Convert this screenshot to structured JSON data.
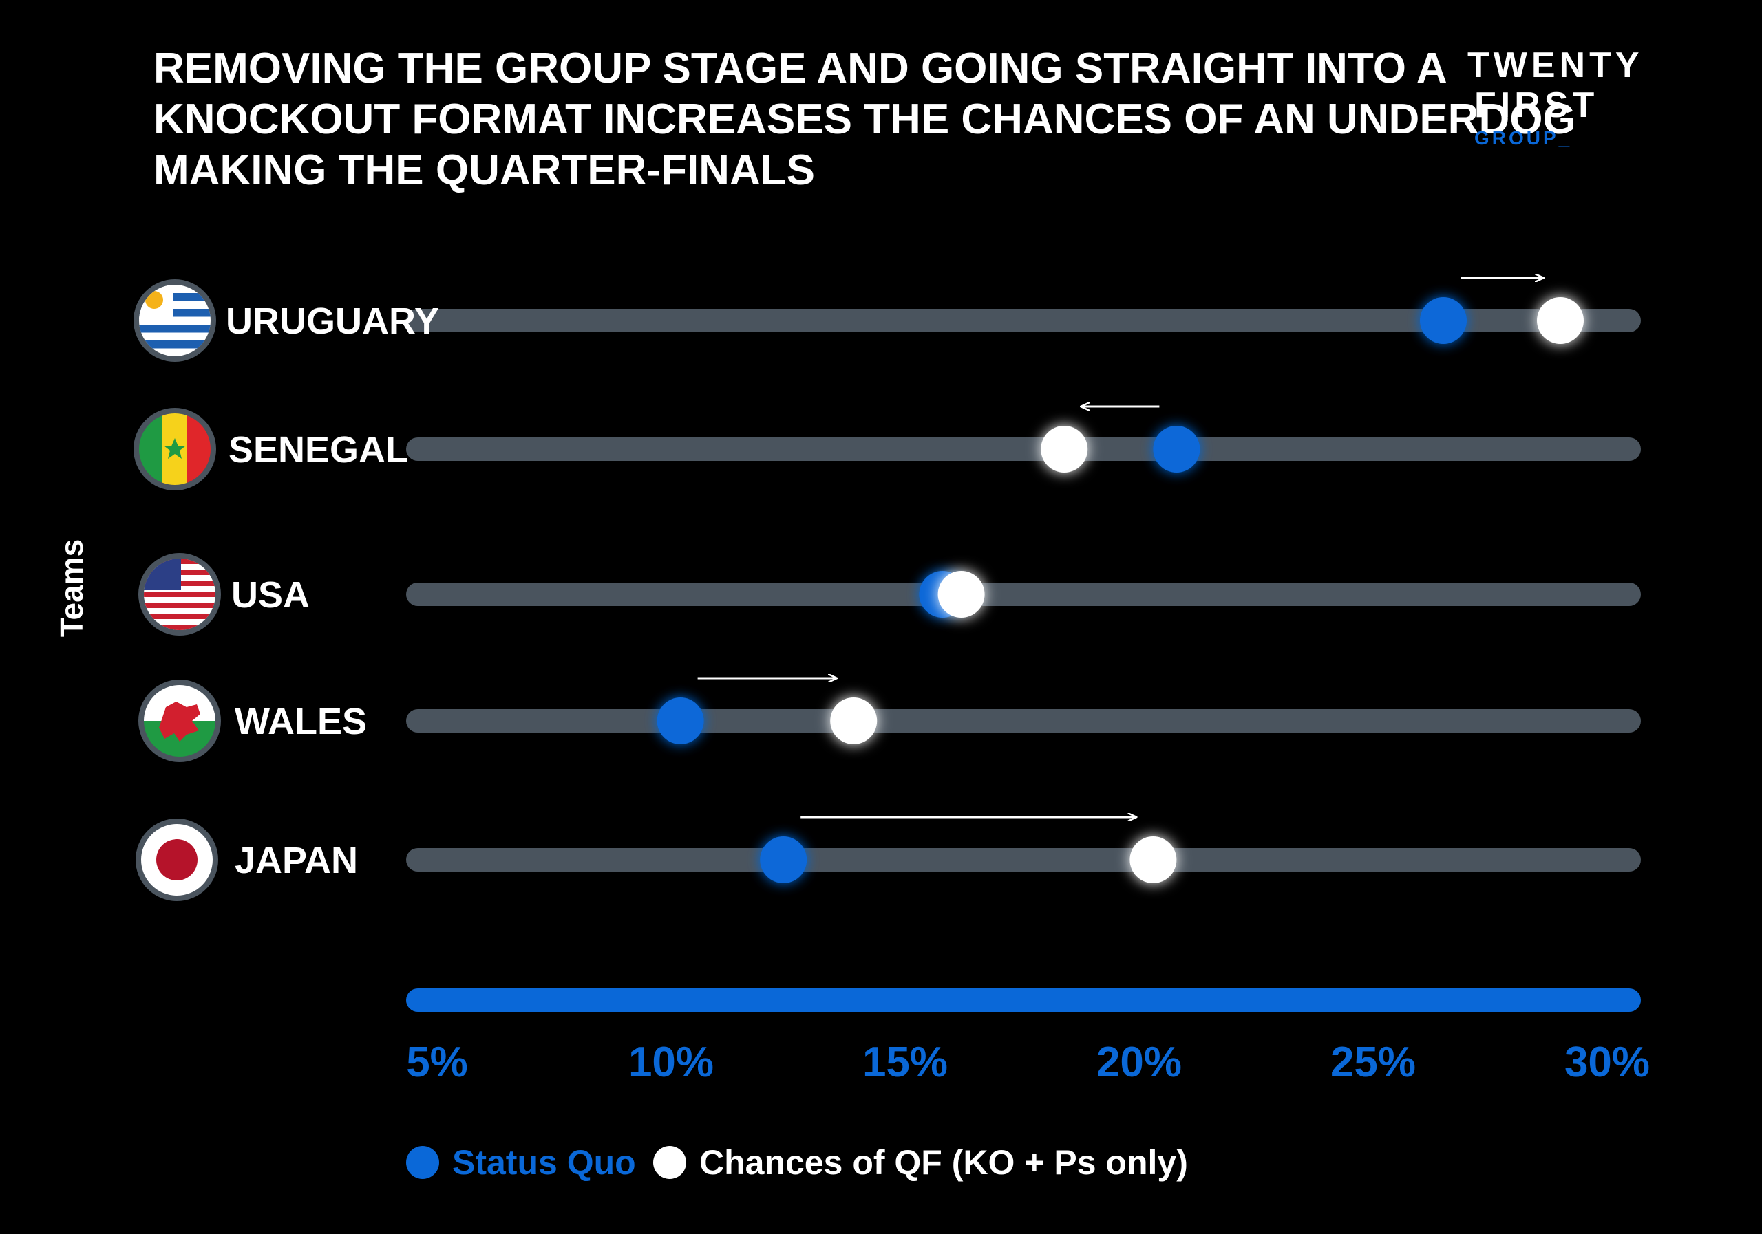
{
  "title_lines": [
    "REMOVING THE GROUP STAGE AND GOING STRAIGHT INTO A",
    "KNOCKOUT FORMAT INCREASES THE CHANCES OF AN UNDERDOG",
    "MAKING THE QUARTER-FINALS"
  ],
  "logo": {
    "line1": "TWENTY",
    "line2": "FIRST",
    "line3": "GROUP_",
    "color": "#0a68d8"
  },
  "colors": {
    "status_quo": "#0a68d8",
    "knockout": "#ffffff",
    "track": "#4a545e",
    "axis": "#0a68d8",
    "background": "#000000"
  },
  "chart_data": {
    "type": "dumbbell",
    "ylabel": "Teams",
    "xlim": [
      5,
      30
    ],
    "ticks": [
      {
        "value": 5,
        "label": "5%"
      },
      {
        "value": 10,
        "label": "10%"
      },
      {
        "value": 15,
        "label": "15%"
      },
      {
        "value": 20,
        "label": "20%"
      },
      {
        "value": 25,
        "label": "25%"
      },
      {
        "value": 30,
        "label": "30%"
      }
    ],
    "categories": [
      "URUGUARY",
      "SENEGAL",
      "USA",
      "WALES",
      "JAPAN"
    ],
    "flags": [
      "uruguay-flag-icon",
      "senegal-flag-icon",
      "usa-flag-icon",
      "wales-flag-icon",
      "japan-flag-icon"
    ],
    "series": [
      {
        "name": "Status Quo",
        "values": [
          26.5,
          20.8,
          15.8,
          10.2,
          12.4
        ]
      },
      {
        "name": "Chances of QF (KO + Ps only)",
        "values": [
          29.0,
          18.4,
          16.2,
          13.9,
          20.3
        ]
      }
    ],
    "legend": "bottom"
  }
}
